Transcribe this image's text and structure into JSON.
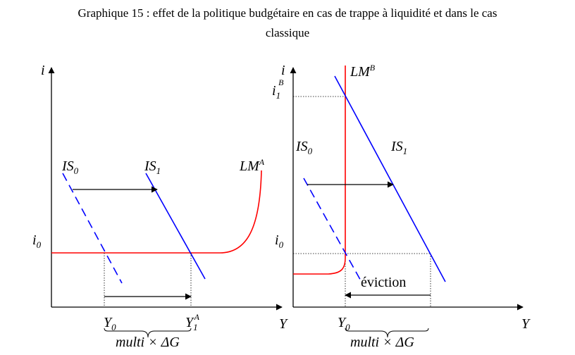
{
  "title_line1": "Graphique 15 : effet de la politique budgétaire en cas de trappe à liquidité et dans le cas",
  "title_line2": "classique",
  "left": {
    "y_axis": "i",
    "x_axis": "Y",
    "i0": "i",
    "i0_sub": "0",
    "is0": "IS",
    "is0_sub": "0",
    "is1": "IS",
    "is1_sub": "1",
    "lm": "LM",
    "lm_sup": "A",
    "y0": "Y",
    "y0_sub": "0",
    "y1": "Y",
    "y1_sub": "1",
    "y1_sup": "A",
    "multiplier": "multi × ΔG"
  },
  "right": {
    "y_axis": "i",
    "x_axis": "Y",
    "i1": "i",
    "i1_sub": "1",
    "i1_sup": "B",
    "i0": "i",
    "i0_sub": "0",
    "is0": "IS",
    "is0_sub": "0",
    "is1": "IS",
    "is1_sub": "1",
    "lm": "LM",
    "lm_sup": "B",
    "y0": "Y",
    "y0_sub": "0",
    "eviction": "éviction",
    "multiplier": "multi × ΔG"
  },
  "colors": {
    "is_curve": "#0000ff",
    "lm_curve": "#ff0000",
    "axis": "#000000"
  }
}
